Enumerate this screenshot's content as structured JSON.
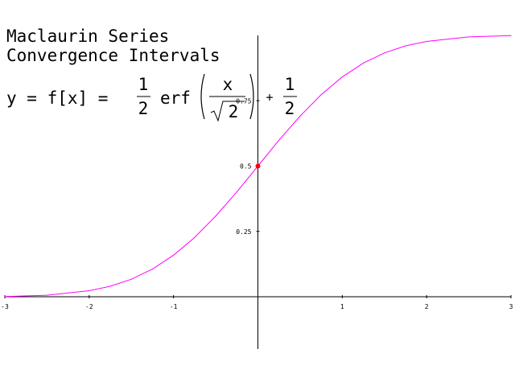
{
  "title": {
    "line1": "Maclaurin Series",
    "line2": "Convergence Intervals"
  },
  "formula": {
    "lhs": "y = f[x] =",
    "half_num": "1",
    "half_den": "2",
    "func": "erf",
    "frac_num": "x",
    "sqrt_arg": "2",
    "plus": "+",
    "tail_num": "1",
    "tail_den": "2"
  },
  "colors": {
    "curve": "#ff00ff",
    "point": "#ff0000",
    "axis": "#000000"
  },
  "chart_data": {
    "type": "line",
    "title": "Maclaurin Series Convergence Intervals",
    "xlabel": "",
    "ylabel": "",
    "xlim": [
      -3,
      3
    ],
    "ylim": [
      -0.2,
      1.0
    ],
    "grid": false,
    "x_ticks": [
      {
        "value": -3,
        "label": "-3"
      },
      {
        "value": -2,
        "label": "-2"
      },
      {
        "value": -1,
        "label": "-1"
      },
      {
        "value": 1,
        "label": "1"
      },
      {
        "value": 2,
        "label": "2"
      },
      {
        "value": 3,
        "label": "3"
      }
    ],
    "y_ticks": [
      {
        "value": 0.25,
        "label": "0.25"
      },
      {
        "value": 0.5,
        "label": "0.5"
      },
      {
        "value": 0.75,
        "label": "0.75"
      }
    ],
    "series": [
      {
        "x": [
          -3,
          -2.5,
          -2,
          -1.75,
          -1.5,
          -1.25,
          -1,
          -0.75,
          -0.5,
          -0.25,
          0,
          0.25,
          0.5,
          0.75,
          1,
          1.25,
          1.5,
          1.75,
          2,
          2.5,
          3
        ],
        "y": [
          0.001,
          0.006,
          0.023,
          0.04,
          0.067,
          0.106,
          0.159,
          0.227,
          0.309,
          0.401,
          0.5,
          0.599,
          0.691,
          0.773,
          0.841,
          0.894,
          0.933,
          0.96,
          0.977,
          0.994,
          0.999
        ]
      }
    ],
    "highlight_point": {
      "x": 0,
      "y": 0.5
    }
  }
}
